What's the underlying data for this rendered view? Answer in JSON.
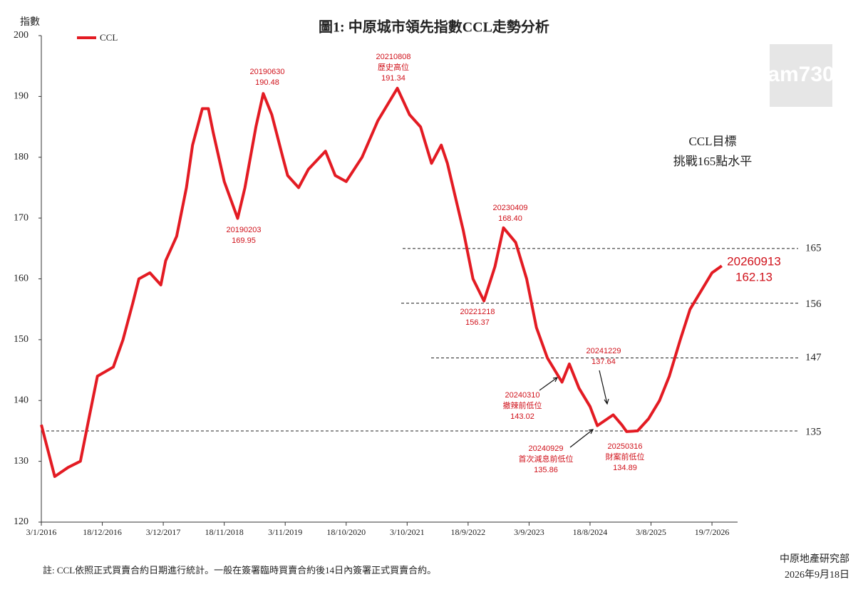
{
  "chart_data": {
    "type": "line",
    "title": "圖1: 中原城市領先指數CCL走勢分析",
    "y_label": "指數",
    "x": [
      "3/1/2016",
      "20/3/2016",
      "5/6/2016",
      "14/8/2016",
      "9/10/2016",
      "20/11/2016",
      "19/2/2017",
      "16/4/2017",
      "11/6/2017",
      "16/7/2017",
      "17/9/2017",
      "19/11/2017",
      "17/12/2017",
      "18/2/2018",
      "15/4/2018",
      "20/5/2018",
      "15/7/2018",
      "19/8/2018",
      "16/9/2018",
      "18/11/2018",
      "3/2/2019",
      "17/3/2019",
      "19/5/2019",
      "30/6/2019",
      "18/8/2019",
      "20/10/2019",
      "17/11/2019",
      "19/1/2020",
      "15/3/2020",
      "21/6/2020",
      "16/8/2020",
      "18/10/2020",
      "17/1/2021",
      "18/4/2021",
      "8/8/2021",
      "17/10/2021",
      "19/12/2021",
      "20/2/2022",
      "17/4/2022",
      "22/5/2022",
      "21/8/2022",
      "16/10/2022",
      "18/12/2022",
      "19/2/2023",
      "9/4/2023",
      "18/6/2023",
      "20/8/2023",
      "15/10/2023",
      "17/12/2023",
      "10/3/2024",
      "21/4/2024",
      "16/6/2024",
      "18/8/2024",
      "29/9/2024",
      "29/12/2024",
      "16/2/2025",
      "16/3/2025",
      "18/5/2025",
      "20/7/2025",
      "21/9/2025",
      "16/11/2025",
      "18/1/2026",
      "15/3/2026",
      "17/5/2026",
      "19/7/2026",
      "13/9/2026"
    ],
    "series": [
      {
        "name": "CCL",
        "color": "#e31b23",
        "values": [
          136,
          127.5,
          129,
          130,
          138,
          144,
          145.5,
          150,
          156,
          160,
          161,
          159,
          163,
          167,
          175,
          182,
          188,
          188,
          184,
          176,
          169.95,
          175,
          185,
          190.48,
          187,
          180,
          177,
          175,
          178,
          181,
          177,
          176,
          180,
          186,
          191.34,
          187,
          185,
          179,
          182,
          179,
          168,
          160,
          156.37,
          162,
          168.4,
          166,
          160,
          152,
          147,
          143.02,
          146,
          142,
          139,
          135.86,
          137.64,
          136,
          134.89,
          135,
          137,
          140,
          144,
          150,
          155,
          158,
          161,
          162.13
        ]
      }
    ],
    "xlim": [
      "3/1/2016",
      "13/12/2026"
    ],
    "xticks": [
      "3/1/2016",
      "18/12/2016",
      "3/12/2017",
      "18/11/2018",
      "3/11/2019",
      "18/10/2020",
      "3/10/2021",
      "18/9/2022",
      "3/9/2023",
      "18/8/2024",
      "3/8/2025",
      "19/7/2026"
    ],
    "ylim": [
      120,
      200
    ],
    "yticks": [
      120,
      130,
      140,
      150,
      160,
      170,
      180,
      190,
      200
    ],
    "ref_lines": [
      165,
      156,
      147,
      135
    ],
    "annotations": [
      {
        "date": "20190203",
        "value": 169.95
      },
      {
        "date": "20190630",
        "value": 190.48
      },
      {
        "date": "20210808",
        "note": "歷史高位",
        "value": 191.34
      },
      {
        "date": "20221218",
        "value": 156.37
      },
      {
        "date": "20230409",
        "value": 168.4,
        "value_label": "168.40"
      },
      {
        "date": "20240310",
        "note": "撤辣前低位",
        "value": 143.02
      },
      {
        "date": "20240929",
        "note": "首次減息前低位",
        "value": 135.86
      },
      {
        "date": "20241229",
        "value": 137.64
      },
      {
        "date": "20250316",
        "note": "財案前低位",
        "value": 134.89
      },
      {
        "date": "20260913",
        "value": 162.13
      }
    ],
    "target_note": [
      "CCL目標",
      "挑戰165點水平"
    ],
    "footnote": "註: CCL依照正式買賣合約日期進行統計。一般在簽署臨時買賣合約後14日內簽署正式買賣合約。",
    "source": "中原地產研究部",
    "source_date": "2026年9月18日",
    "logo": "am730"
  }
}
